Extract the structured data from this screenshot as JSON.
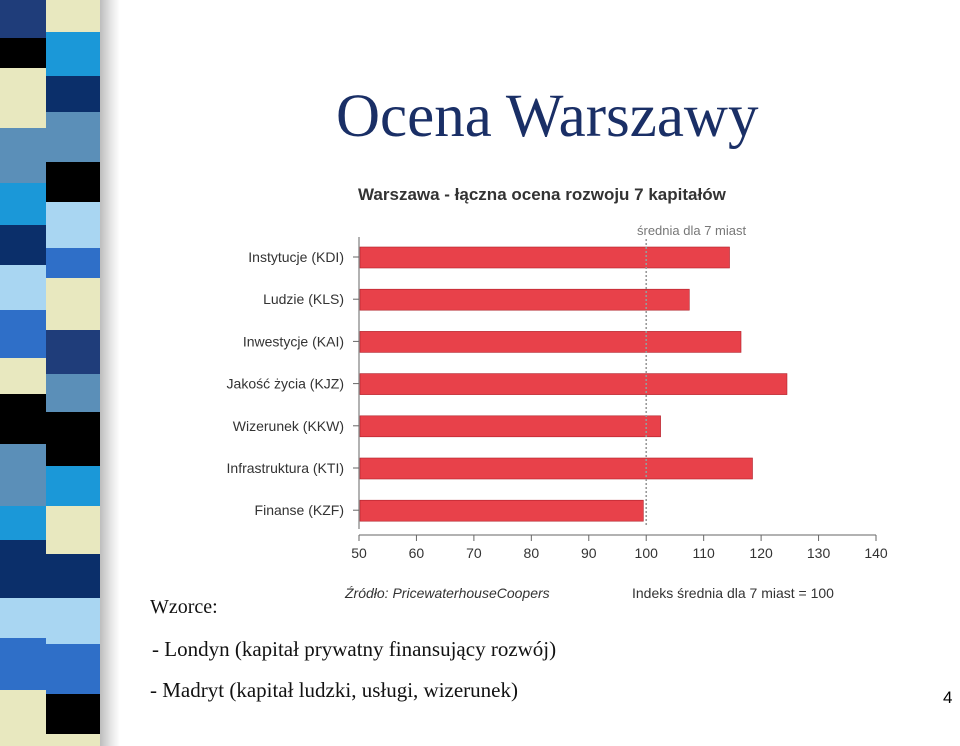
{
  "slide": {
    "title": "Ocena Warszawy",
    "page_number": "4",
    "patterns_label": "Wzorce:",
    "bullets": [
      {
        "dash": "-",
        "text": "Londyn (kapitał prywatny finansujący rozwój)"
      },
      {
        "dash": "-",
        "text": "Madryt (kapitał ludzki, usługi, wizerunek)"
      }
    ]
  },
  "chart_data": {
    "type": "bar",
    "orientation": "horizontal",
    "title": "Warszawa - łączna ocena rozwoju 7 kapitałów",
    "reference_line": {
      "value": 100,
      "label": "średnia dla 7 miast"
    },
    "categories": [
      "Instytucje (KDI)",
      "Ludzie (KLS)",
      "Inwestycje (KAI)",
      "Jakość życia (KJZ)",
      "Wizerunek (KKW)",
      "Infrastruktura (KTI)",
      "Finanse (KZF)"
    ],
    "values": [
      114.5,
      107.5,
      116.5,
      124.5,
      102.5,
      118.5,
      99.5
    ],
    "xlim": [
      50,
      140
    ],
    "xticks": [
      50,
      60,
      70,
      80,
      90,
      100,
      110,
      120,
      130,
      140
    ],
    "source_note": "Źródło: PricewaterhouseCoopers",
    "index_note": "Indeks średnia dla 7 miast = 100",
    "bar_color": "#e8414a"
  }
}
